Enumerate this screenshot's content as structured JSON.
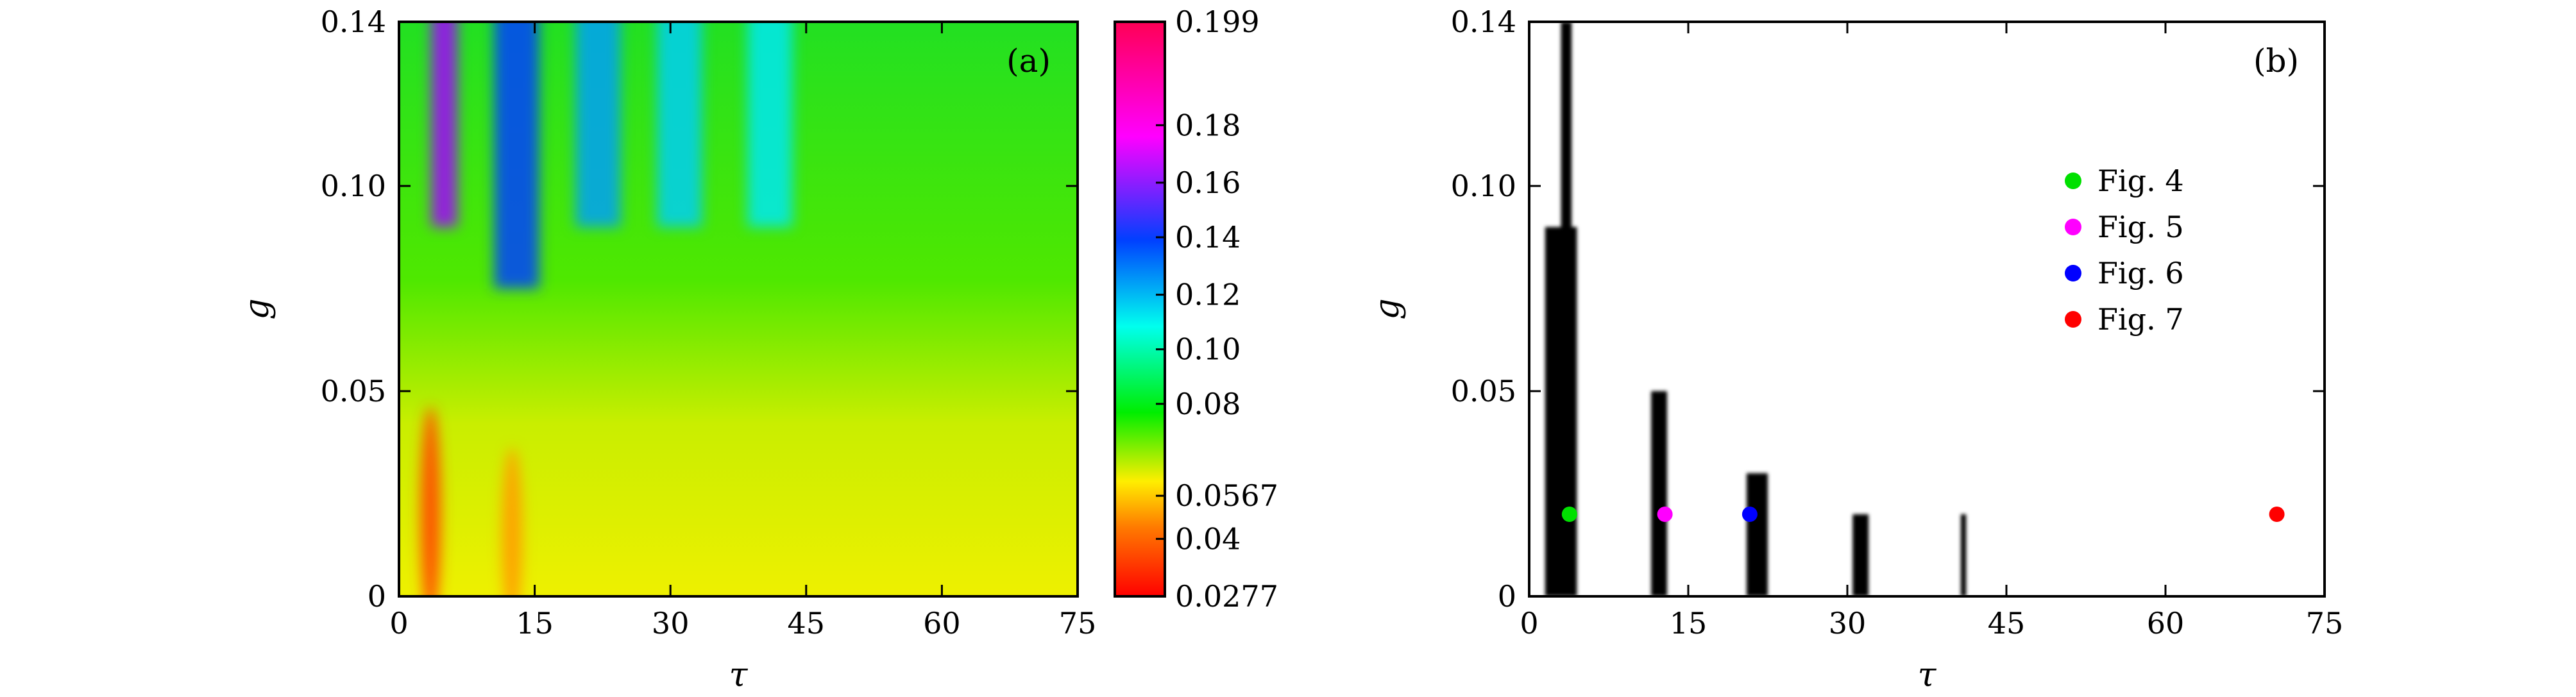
{
  "chart_data": [
    {
      "type": "heatmap",
      "panel_label": "(a)",
      "xlabel": "τ",
      "ylabel": "g",
      "xlim": [
        0,
        75
      ],
      "ylim": [
        0,
        0.14
      ],
      "xticks": [
        0,
        15,
        30,
        45,
        60,
        75
      ],
      "xtick_labels": [
        "0",
        "15",
        "30",
        "45",
        "60",
        "75"
      ],
      "yticks": [
        0,
        0.05,
        0.1,
        0.14
      ],
      "ytick_labels": [
        "0",
        "0.05",
        "0.10",
        "0.14"
      ],
      "colorbar": {
        "min": 0.0277,
        "max": 0.199,
        "ticks": [
          0.0277,
          0.04,
          0.0567,
          0.08,
          0.1,
          0.12,
          0.14,
          0.16,
          0.18,
          0.199
        ],
        "tick_labels": [
          "0.0277",
          "0.04",
          "0.0567",
          "0.08",
          "0.10",
          "0.12",
          "0.14",
          "0.16",
          "0.18",
          "0.199"
        ],
        "colors": [
          "#ff0000",
          "#ff7a00",
          "#ffee00",
          "#00ee00",
          "#00ffee",
          "#0040ff",
          "#ff00ff",
          "#ff0055"
        ]
      },
      "features": [
        {
          "tau": 3.5,
          "g_max": 0.04,
          "value": 0.035
        },
        {
          "tau": 12.5,
          "g_max": 0.03,
          "value": 0.045
        },
        {
          "tau": 5.0,
          "g_min": 0.09,
          "value": 0.16
        },
        {
          "tau": 13.0,
          "g_min": 0.075,
          "value": 0.14
        },
        {
          "tau": 22.0,
          "g_min": 0.09,
          "value": 0.12
        },
        {
          "tau": 31.0,
          "g_min": 0.09,
          "value": 0.11
        },
        {
          "tau": 41.0,
          "g_min": 0.09,
          "value": 0.105
        }
      ]
    },
    {
      "type": "scatter",
      "panel_label": "(b)",
      "xlabel": "τ",
      "ylabel": "g",
      "xlim": [
        0,
        75
      ],
      "ylim": [
        0,
        0.14
      ],
      "xticks": [
        0,
        15,
        30,
        45,
        60,
        75
      ],
      "xtick_labels": [
        "0",
        "15",
        "30",
        "45",
        "60",
        "75"
      ],
      "yticks": [
        0,
        0.05,
        0.1,
        0.14
      ],
      "ytick_labels": [
        "0",
        "0.05",
        "0.10",
        "0.14"
      ],
      "legend_placement": "upper-right",
      "black_regions": [
        {
          "tau_min": 1.5,
          "tau_max": 4.5,
          "g_max": 0.09
        },
        {
          "tau_min": 3.0,
          "tau_max": 4.0,
          "g_max": 0.14
        },
        {
          "tau_min": 11.5,
          "tau_max": 13.0,
          "g_max": 0.05
        },
        {
          "tau_min": 20.5,
          "tau_max": 22.5,
          "g_max": 0.03
        },
        {
          "tau_min": 30.5,
          "tau_max": 32.0,
          "g_max": 0.02
        },
        {
          "tau_min": 40.7,
          "tau_max": 41.2,
          "g_max": 0.02
        }
      ],
      "series": [
        {
          "name": "Fig. 4",
          "color": "#00e000",
          "x": [
            3.8
          ],
          "y": [
            0.02
          ]
        },
        {
          "name": "Fig. 5",
          "color": "#ff00ff",
          "x": [
            12.8
          ],
          "y": [
            0.02
          ]
        },
        {
          "name": "Fig. 6",
          "color": "#0000ff",
          "x": [
            20.8
          ],
          "y": [
            0.02
          ]
        },
        {
          "name": "Fig. 7",
          "color": "#ff0000",
          "x": [
            70.5
          ],
          "y": [
            0.02
          ]
        }
      ]
    }
  ]
}
